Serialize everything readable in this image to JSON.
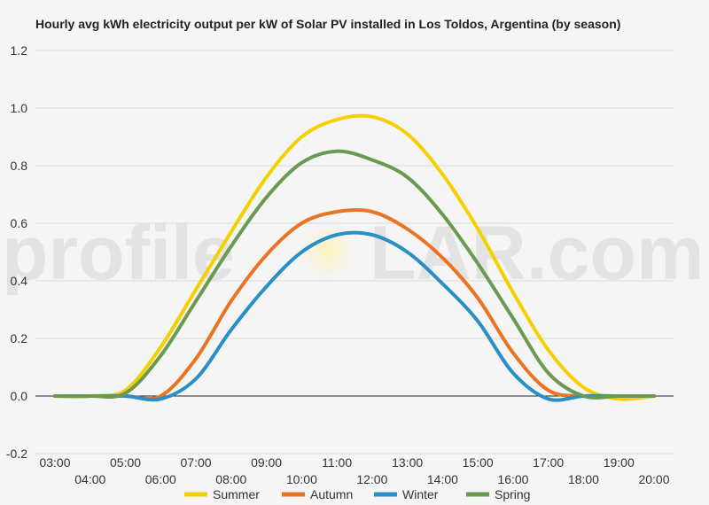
{
  "chart_data": {
    "type": "line",
    "title": "Hourly avg kWh electricity output per kW of Solar PV installed in Los Toldos, Argentina (by season)",
    "xlabel": "",
    "ylabel": "",
    "ylim": [
      -0.2,
      1.2
    ],
    "y_ticks": [
      "-0.2",
      "0.0",
      "0.2",
      "0.4",
      "0.6",
      "0.8",
      "1.0",
      "1.2"
    ],
    "x_ticks": [
      "03:00",
      "04:00",
      "05:00",
      "06:00",
      "07:00",
      "08:00",
      "09:00",
      "10:00",
      "11:00",
      "12:00",
      "13:00",
      "14:00",
      "15:00",
      "16:00",
      "17:00",
      "18:00",
      "19:00",
      "20:00"
    ],
    "x": [
      3,
      4,
      5,
      6,
      7,
      8,
      9,
      10,
      11,
      12,
      13,
      14,
      15,
      16,
      17,
      18,
      19,
      20
    ],
    "grid": true,
    "legend_position": "bottom",
    "series": [
      {
        "name": "Summer",
        "color": "#f5d000",
        "values": [
          0.0,
          0.0,
          0.02,
          0.17,
          0.37,
          0.57,
          0.76,
          0.9,
          0.96,
          0.97,
          0.91,
          0.77,
          0.58,
          0.36,
          0.16,
          0.03,
          -0.01,
          0.0
        ]
      },
      {
        "name": "Autumn",
        "color": "#e87424",
        "values": [
          0.0,
          0.0,
          0.0,
          0.0,
          0.13,
          0.33,
          0.49,
          0.6,
          0.64,
          0.64,
          0.58,
          0.48,
          0.34,
          0.15,
          0.02,
          0.0,
          0.0,
          0.0
        ]
      },
      {
        "name": "Winter",
        "color": "#2a8fc4",
        "values": [
          0.0,
          0.0,
          0.0,
          -0.01,
          0.06,
          0.23,
          0.38,
          0.5,
          0.56,
          0.56,
          0.5,
          0.39,
          0.26,
          0.08,
          -0.01,
          0.0,
          0.0,
          0.0
        ]
      },
      {
        "name": "Spring",
        "color": "#6a9a50",
        "values": [
          0.0,
          0.0,
          0.01,
          0.14,
          0.33,
          0.52,
          0.69,
          0.81,
          0.85,
          0.82,
          0.76,
          0.63,
          0.46,
          0.27,
          0.08,
          0.0,
          0.0,
          0.0
        ]
      }
    ]
  },
  "watermark": {
    "left": "profile",
    "right": "LAR.com"
  }
}
